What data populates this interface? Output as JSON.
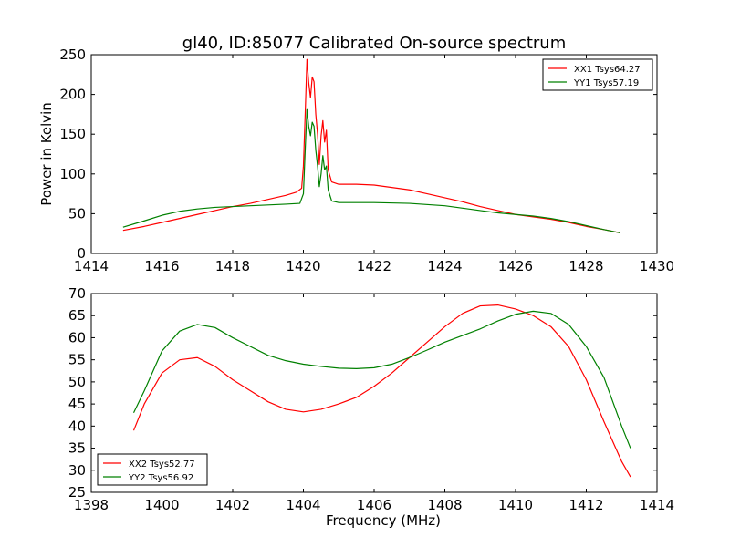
{
  "title": "gl40, ID:85077 Calibrated On-source spectrum",
  "chart_data": [
    {
      "type": "line",
      "title": "gl40, ID:85077 Calibrated On-source spectrum",
      "xlabel": "",
      "ylabel": "Power in Kelvin",
      "xlim": [
        1414,
        1430
      ],
      "ylim": [
        0,
        250
      ],
      "xticks": [
        1414,
        1416,
        1418,
        1420,
        1422,
        1424,
        1426,
        1428,
        1430
      ],
      "yticks": [
        0,
        50,
        100,
        150,
        200,
        250
      ],
      "grid": false,
      "legend": "top-right",
      "series": [
        {
          "name": "XX1 Tsys64.27",
          "color": "#ff0000",
          "points": [
            [
              1414.9,
              29
            ],
            [
              1415.5,
              34
            ],
            [
              1416,
              39
            ],
            [
              1416.5,
              44
            ],
            [
              1417,
              49
            ],
            [
              1417.5,
              54
            ],
            [
              1418,
              59
            ],
            [
              1418.5,
              63
            ],
            [
              1419,
              68
            ],
            [
              1419.5,
              73
            ],
            [
              1419.8,
              77
            ],
            [
              1419.95,
              82
            ],
            [
              1420.0,
              110
            ],
            [
              1420.05,
              175
            ],
            [
              1420.1,
              244
            ],
            [
              1420.15,
              215
            ],
            [
              1420.2,
              196
            ],
            [
              1420.25,
              222
            ],
            [
              1420.3,
              216
            ],
            [
              1420.35,
              175
            ],
            [
              1420.4,
              150
            ],
            [
              1420.45,
              112
            ],
            [
              1420.5,
              148
            ],
            [
              1420.55,
              167
            ],
            [
              1420.6,
              140
            ],
            [
              1420.65,
              155
            ],
            [
              1420.7,
              105
            ],
            [
              1420.8,
              90
            ],
            [
              1421,
              87
            ],
            [
              1421.5,
              87
            ],
            [
              1422,
              86
            ],
            [
              1422.5,
              83
            ],
            [
              1423,
              80
            ],
            [
              1423.5,
              75
            ],
            [
              1424,
              70
            ],
            [
              1424.5,
              65
            ],
            [
              1425,
              59
            ],
            [
              1425.5,
              54
            ],
            [
              1426,
              49
            ],
            [
              1426.5,
              46
            ],
            [
              1427,
              43
            ],
            [
              1427.5,
              39
            ],
            [
              1428,
              34
            ],
            [
              1428.5,
              30
            ],
            [
              1428.95,
              26
            ]
          ]
        },
        {
          "name": "YY1 Tsys57.19",
          "color": "#008000",
          "points": [
            [
              1414.9,
              33
            ],
            [
              1415.5,
              41
            ],
            [
              1416,
              48
            ],
            [
              1416.5,
              53
            ],
            [
              1417,
              56
            ],
            [
              1417.5,
              58
            ],
            [
              1418,
              59
            ],
            [
              1418.5,
              60
            ],
            [
              1419,
              61
            ],
            [
              1419.5,
              62
            ],
            [
              1419.9,
              63
            ],
            [
              1420.0,
              75
            ],
            [
              1420.05,
              130
            ],
            [
              1420.1,
              181
            ],
            [
              1420.15,
              160
            ],
            [
              1420.2,
              148
            ],
            [
              1420.25,
              165
            ],
            [
              1420.3,
              160
            ],
            [
              1420.35,
              130
            ],
            [
              1420.4,
              110
            ],
            [
              1420.45,
              84
            ],
            [
              1420.5,
              100
            ],
            [
              1420.55,
              123
            ],
            [
              1420.6,
              105
            ],
            [
              1420.65,
              110
            ],
            [
              1420.7,
              80
            ],
            [
              1420.8,
              66
            ],
            [
              1421,
              64
            ],
            [
              1422,
              64
            ],
            [
              1423,
              63
            ],
            [
              1424,
              60
            ],
            [
              1424.5,
              57
            ],
            [
              1425,
              54
            ],
            [
              1425.5,
              51
            ],
            [
              1426,
              49
            ],
            [
              1426.5,
              47
            ],
            [
              1427,
              44
            ],
            [
              1427.5,
              40
            ],
            [
              1428,
              35
            ],
            [
              1428.5,
              30
            ],
            [
              1428.95,
              26
            ]
          ]
        }
      ]
    },
    {
      "type": "line",
      "title": "",
      "xlabel": "Frequency (MHz)",
      "ylabel": "",
      "xlim": [
        1398,
        1414
      ],
      "ylim": [
        25,
        70
      ],
      "xticks": [
        1398,
        1400,
        1402,
        1404,
        1406,
        1408,
        1410,
        1412,
        1414
      ],
      "yticks": [
        25,
        30,
        35,
        40,
        45,
        50,
        55,
        60,
        65,
        70
      ],
      "grid": false,
      "legend": "bottom-left",
      "series": [
        {
          "name": "XX2 Tsys52.77",
          "color": "#ff0000",
          "points": [
            [
              1399.2,
              39
            ],
            [
              1399.5,
              45
            ],
            [
              1400,
              52
            ],
            [
              1400.5,
              55
            ],
            [
              1401,
              55.5
            ],
            [
              1401.5,
              53.5
            ],
            [
              1402,
              50.5
            ],
            [
              1402.5,
              48
            ],
            [
              1403,
              45.5
            ],
            [
              1403.5,
              43.8
            ],
            [
              1404,
              43.2
            ],
            [
              1404.5,
              43.8
            ],
            [
              1405,
              45
            ],
            [
              1405.5,
              46.5
            ],
            [
              1406,
              49
            ],
            [
              1406.5,
              52
            ],
            [
              1407,
              55.5
            ],
            [
              1407.5,
              59
            ],
            [
              1408,
              62.5
            ],
            [
              1408.5,
              65.5
            ],
            [
              1409,
              67.2
            ],
            [
              1409.5,
              67.4
            ],
            [
              1410,
              66.5
            ],
            [
              1410.5,
              65
            ],
            [
              1411,
              62.5
            ],
            [
              1411.5,
              58
            ],
            [
              1412,
              50.5
            ],
            [
              1412.5,
              41
            ],
            [
              1413,
              32
            ],
            [
              1413.25,
              28.5
            ]
          ]
        },
        {
          "name": "YY2 Tsys56.92",
          "color": "#008000",
          "points": [
            [
              1399.2,
              43
            ],
            [
              1399.5,
              48
            ],
            [
              1400,
              57
            ],
            [
              1400.5,
              61.5
            ],
            [
              1401,
              63
            ],
            [
              1401.5,
              62.3
            ],
            [
              1402,
              60
            ],
            [
              1402.5,
              58
            ],
            [
              1403,
              56
            ],
            [
              1403.5,
              54.8
            ],
            [
              1404,
              54
            ],
            [
              1404.5,
              53.5
            ],
            [
              1405,
              53.1
            ],
            [
              1405.5,
              53
            ],
            [
              1406,
              53.2
            ],
            [
              1406.5,
              54
            ],
            [
              1407,
              55.5
            ],
            [
              1407.5,
              57.2
            ],
            [
              1408,
              59
            ],
            [
              1408.5,
              60.5
            ],
            [
              1409,
              62
            ],
            [
              1409.5,
              63.8
            ],
            [
              1410,
              65.3
            ],
            [
              1410.5,
              66
            ],
            [
              1411,
              65.5
            ],
            [
              1411.5,
              63
            ],
            [
              1412,
              58
            ],
            [
              1412.5,
              51
            ],
            [
              1413,
              40
            ],
            [
              1413.25,
              35
            ]
          ]
        }
      ]
    }
  ]
}
